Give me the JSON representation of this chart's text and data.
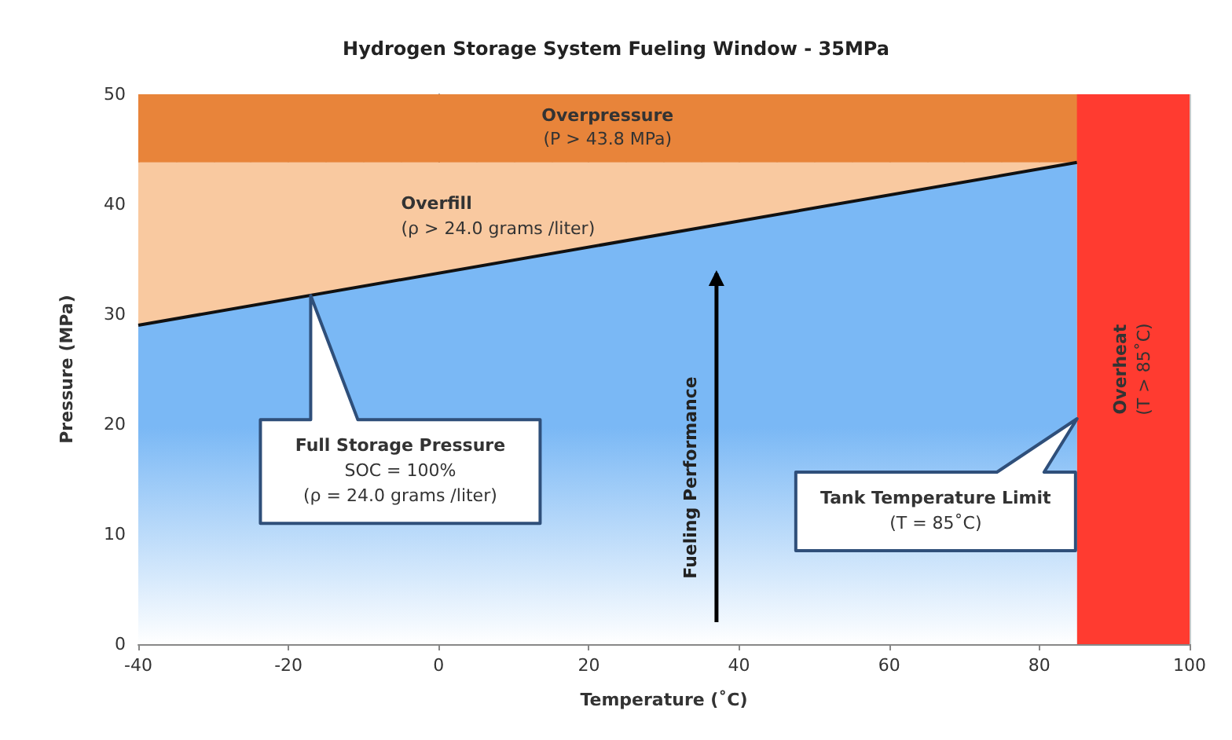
{
  "chart_data": {
    "type": "area",
    "title": "Hydrogen Storage System Fueling Window - 35MPa",
    "xlabel": "Temperature (˚C)",
    "ylabel": "Pressure (MPa)",
    "x": [
      -40,
      85
    ],
    "series": [
      {
        "color": "#7ab8f5",
        "values": [
          29,
          43.8
        ]
      }
    ],
    "xlim": [
      -40,
      100
    ],
    "xticks": [
      -40,
      -20,
      0,
      20,
      40,
      60,
      80,
      100
    ],
    "ylim": [
      0,
      50
    ],
    "yticks": [
      0,
      10,
      20,
      30,
      40,
      50
    ],
    "grid": true,
    "bands": [
      {
        "axis": "y",
        "from": 29,
        "to": 43.8,
        "color": "#f9c9a0"
      },
      {
        "axis": "y",
        "from": 43.8,
        "to": 50,
        "label": "Overpressure\n(P > 43.8 MPa)",
        "color": "#e8843a"
      },
      {
        "axis": "x",
        "from": 85,
        "to": 100,
        "label": "Overheat\n(T > 85˚C)",
        "color": "#ff3b30"
      }
    ],
    "annotations": [
      "Overfill\n(ρ > 24.0 grams /liter)",
      "Full Storage Pressure\nSOC = 100%\n(ρ = 24.0 grams /liter)",
      "Tank Temperature Limit\n(T = 85˚C)",
      "Fueling Performance"
    ]
  }
}
